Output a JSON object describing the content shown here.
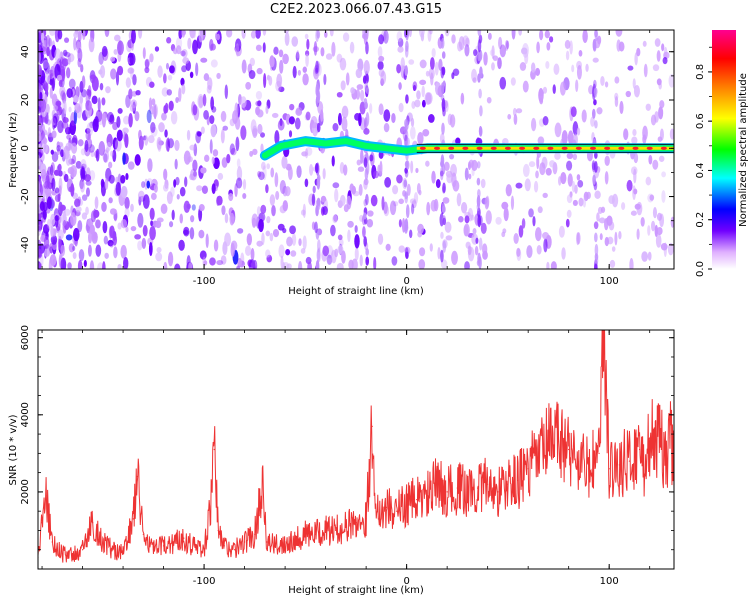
{
  "title": "C2E2.2023.066.07.43.G15",
  "chart_data": [
    {
      "type": "heatmap",
      "xlabel": "Height of straight line (km)",
      "ylabel": "Frequency (Hz)",
      "xlim": [
        -182,
        132
      ],
      "ylim": [
        -50,
        49
      ],
      "xticks": [
        -100,
        0,
        100
      ],
      "yticks": [
        -40,
        -20,
        0,
        20,
        40
      ],
      "colorbar": {
        "label": "Normalized spectral amplitude",
        "range": [
          0,
          0.97
        ],
        "ticks": [
          "0.0",
          "0.2",
          "0.4",
          "0.6",
          "0.8"
        ],
        "colors": [
          "#ffffff",
          "#e0b0ff",
          "#7000ff",
          "#0000ff",
          "#00ffff",
          "#00ff00",
          "#ffff00",
          "#ff8000",
          "#ff0000",
          "#ff0090"
        ]
      },
      "signal_trace": {
        "description": "tone near 0 Hz",
        "points": [
          [
            -70,
            -3
          ],
          [
            -62,
            1
          ],
          [
            -50,
            3
          ],
          [
            -40,
            2
          ],
          [
            -30,
            3
          ],
          [
            -20,
            1
          ],
          [
            -10,
            0
          ],
          [
            0,
            -1
          ],
          [
            10,
            0
          ],
          [
            50,
            0
          ],
          [
            100,
            0
          ],
          [
            132,
            0
          ]
        ]
      },
      "vertical_stripes": [
        -44,
        -20,
        0,
        18,
        36,
        93
      ]
    },
    {
      "type": "line",
      "xlabel": "Height of straight line (km)",
      "ylabel": "SNR (10 * v/v)",
      "xlim": [
        -182,
        132
      ],
      "ylim": [
        0,
        6200
      ],
      "xticks": [
        -100,
        0,
        100
      ],
      "yticks": [
        2000,
        4000,
        6000
      ],
      "color": "#ee3333",
      "series": [
        {
          "x": [
            -182,
            -180,
            -178,
            -175,
            -170,
            -165,
            -160,
            -155,
            -150,
            -145,
            -140,
            -135,
            -133,
            -130,
            -125,
            -120,
            -115,
            -110,
            -105,
            -100,
            -97,
            -95,
            -93,
            -90,
            -85,
            -80,
            -75,
            -71,
            -69,
            -65,
            -60,
            -55,
            -50,
            -45,
            -40,
            -35,
            -30,
            -25,
            -20,
            -17,
            -15,
            -10,
            -5,
            0,
            5,
            10,
            15,
            20,
            25,
            30,
            35,
            40,
            45,
            50,
            55,
            60,
            65,
            70,
            75,
            80,
            85,
            90,
            95,
            97,
            100,
            105,
            110,
            115,
            118,
            120,
            125,
            128,
            130,
            132
          ],
          "values": [
            300,
            1200,
            1900,
            700,
            400,
            350,
            500,
            1200,
            700,
            500,
            400,
            1300,
            2400,
            900,
            500,
            600,
            700,
            800,
            600,
            500,
            1500,
            3100,
            1000,
            600,
            500,
            700,
            900,
            2300,
            700,
            600,
            700,
            800,
            900,
            900,
            1000,
            1000,
            1100,
            1200,
            1300,
            3700,
            1500,
            1600,
            1500,
            1700,
            1800,
            1900,
            2200,
            2000,
            2100,
            2000,
            2100,
            2200,
            2000,
            2200,
            2300,
            2600,
            2900,
            3300,
            3400,
            3100,
            2800,
            2600,
            3000,
            6000,
            2600,
            2700,
            2800,
            3100,
            2600,
            3400,
            3300,
            2800,
            3400,
            2900
          ]
        }
      ]
    }
  ]
}
